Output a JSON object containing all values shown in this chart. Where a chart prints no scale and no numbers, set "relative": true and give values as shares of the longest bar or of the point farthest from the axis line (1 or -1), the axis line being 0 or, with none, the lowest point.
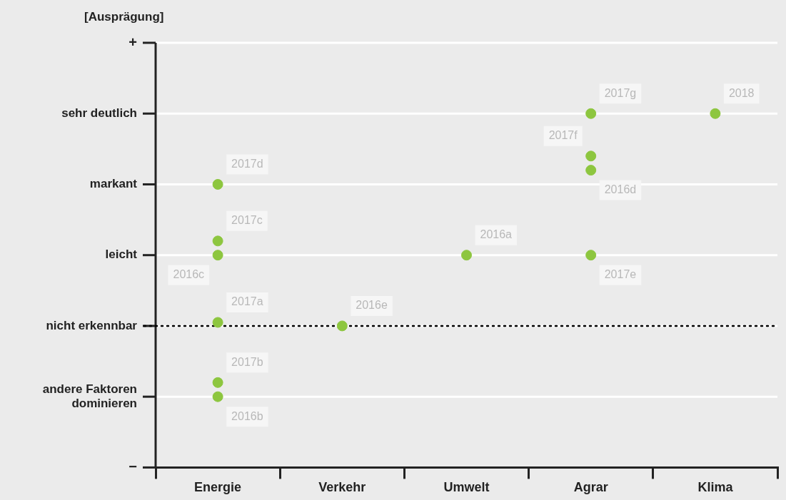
{
  "chart_data": {
    "type": "scatter",
    "relative": true,
    "categories": [
      "Energie",
      "Verkehr",
      "Umwelt",
      "Agrar",
      "Klima"
    ],
    "series": [
      {
        "color": "#8dc63f",
        "x": [
          "Energie",
          "Energie",
          "Energie",
          "Energie",
          "Energie",
          "Energie",
          "Verkehr",
          "Umwelt",
          "Agrar",
          "Agrar",
          "Agrar",
          "Agrar",
          "Klima"
        ],
        "values": [
          0.8,
          0.64,
          0.6,
          0.41,
          0.24,
          0.2,
          0.4,
          0.6,
          1,
          0.88,
          0.84,
          0.6,
          1
        ]
      }
    ],
    "grid": "y",
    "marker": "circle",
    "legend": false,
    "ref_lines": [
      {
        "axis": "y",
        "value": 0.4,
        "label": null,
        "color": "#000000",
        "line_style": "dotted"
      }
    ],
    "annotations": [
      "[Ausprägung]",
      "−",
      "andere Faktoren dominieren",
      "nicht erkennbar",
      "leicht",
      "markant",
      "sehr deutlich",
      "+",
      {
        "text": "2017d",
        "x": "Energie",
        "y": 0.8
      },
      {
        "text": "2017c",
        "x": "Energie",
        "y": 0.64
      },
      {
        "text": "2016c",
        "x": "Energie",
        "y": 0.6
      },
      {
        "text": "2017a",
        "x": "Energie",
        "y": 0.41
      },
      {
        "text": "2017b",
        "x": "Energie",
        "y": 0.24
      },
      {
        "text": "2016b",
        "x": "Energie",
        "y": 0.2
      },
      {
        "text": "2016e",
        "x": "Verkehr",
        "y": 0.4
      },
      {
        "text": "2016a",
        "x": "Umwelt",
        "y": 0.6
      },
      {
        "text": "2017g",
        "x": "Agrar",
        "y": 1
      },
      {
        "text": "2017f",
        "x": "Agrar",
        "y": 0.88
      },
      {
        "text": "2016d",
        "x": "Agrar",
        "y": 0.84
      },
      {
        "text": "2017e",
        "x": "Agrar",
        "y": 0.6
      },
      {
        "text": "2018",
        "x": "Klima",
        "y": 1
      }
    ]
  }
}
